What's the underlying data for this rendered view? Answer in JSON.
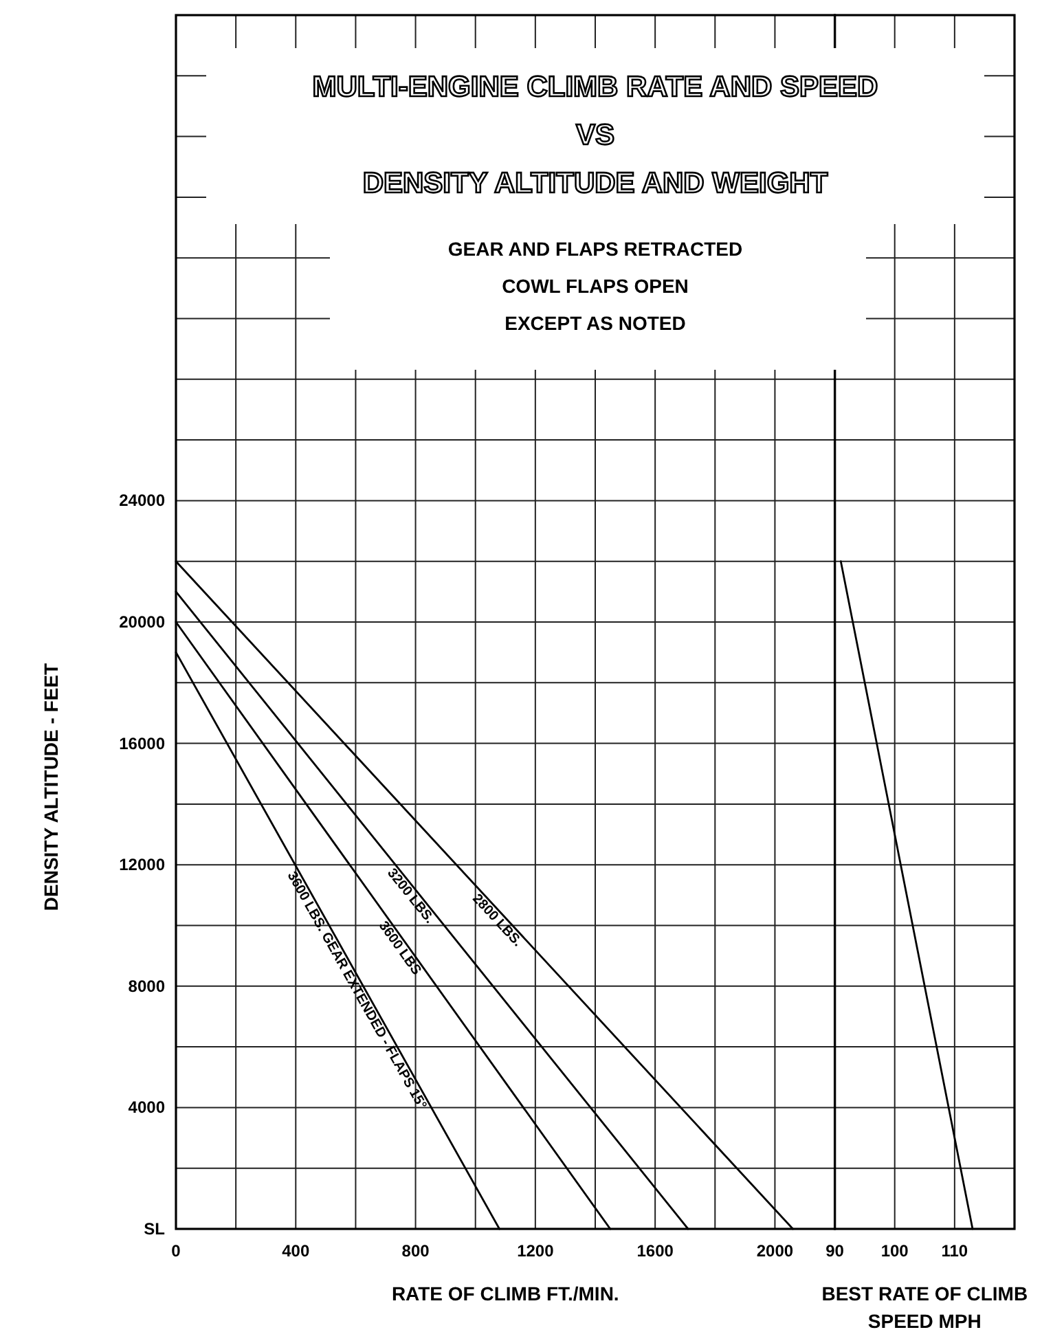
{
  "chart_data": [
    {
      "type": "line",
      "title": "MULTI-ENGINE CLIMB RATE AND SPEED\nVS\nDENSITY ALTITUDE AND WEIGHT",
      "subtitle": "GEAR AND FLAPS RETRACTED\nCOWL FLAPS OPEN\nEXCEPT AS NOTED",
      "xlabel": "RATE OF CLIMB FT./MIN.",
      "ylabel": "DENSITY ALTITUDE - FEET",
      "xlim": [
        0,
        2200
      ],
      "xticks": [
        0,
        {
          "value": 200,
          "label": null
        },
        400,
        {
          "value": 600,
          "label": null
        },
        800,
        {
          "value": 1000,
          "label": null
        },
        1200,
        {
          "value": 1400,
          "label": null
        },
        1600,
        {
          "value": 1800,
          "label": null
        },
        2000,
        {
          "value": 2200,
          "label": null
        }
      ],
      "ylim": [
        0,
        40000
      ],
      "yticks": [
        {
          "value": 0,
          "label": "SL"
        },
        {
          "value": 2000,
          "label": null
        },
        4000,
        {
          "value": 6000,
          "label": null
        },
        8000,
        {
          "value": 10000,
          "label": null
        },
        12000,
        {
          "value": 14000,
          "label": null
        },
        16000,
        {
          "value": 18000,
          "label": null
        },
        20000,
        {
          "value": 22000,
          "label": null
        },
        24000,
        {
          "value": 26000,
          "label": null
        },
        {
          "value": 28000,
          "label": null
        },
        {
          "value": 30000,
          "label": null
        },
        {
          "value": 32000,
          "label": null
        },
        {
          "value": 34000,
          "label": null
        },
        {
          "value": 36000,
          "label": null
        },
        {
          "value": 38000,
          "label": null
        },
        {
          "value": 40000,
          "label": null
        }
      ],
      "grid": true,
      "legend": false,
      "line_style": "solid",
      "series": [
        {
          "name": "2800 LBS.",
          "color": "#000000",
          "x": [
            0,
            2060
          ],
          "values": [
            22000,
            0
          ]
        },
        {
          "name": "3200 LBS.",
          "color": "#000000",
          "x": [
            0,
            1710
          ],
          "values": [
            21000,
            0
          ]
        },
        {
          "name": "3600 LBS",
          "color": "#000000",
          "x": [
            0,
            1450
          ],
          "values": [
            20000,
            0
          ]
        },
        {
          "name": "3600 LBS. GEAR EXTENDED - FLAPS 15°",
          "color": "#000000",
          "x": [
            0,
            1080
          ],
          "values": [
            19000,
            0
          ]
        }
      ]
    },
    {
      "type": "line",
      "xlabel": "BEST RATE OF CLIMB\nSPEED MPH",
      "xlim": [
        90,
        120
      ],
      "xticks": [
        90,
        100,
        110,
        {
          "value": 120,
          "label": null
        }
      ],
      "ylim": [
        0,
        40000
      ],
      "yticks": [
        0,
        2000,
        4000,
        6000,
        8000,
        10000,
        12000,
        14000,
        16000,
        18000,
        20000,
        22000,
        24000,
        26000,
        28000,
        30000,
        32000,
        34000,
        36000,
        38000,
        40000
      ],
      "tick_labels": "x",
      "grid": true,
      "line_style": "solid",
      "series": [
        {
          "color": "#000000",
          "x": [
            91,
            113
          ],
          "values": [
            22000,
            0
          ]
        }
      ]
    }
  ]
}
